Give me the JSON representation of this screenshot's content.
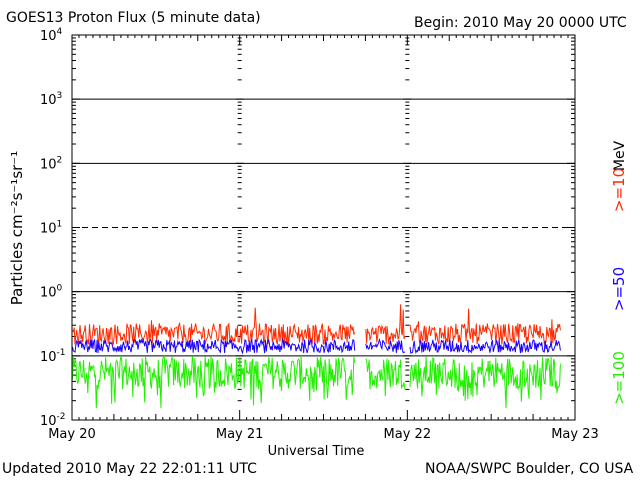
{
  "header": {
    "title": "GOES13 Proton Flux (5 minute data)",
    "begin": "Begin: 2010 May 20 0000 UTC"
  },
  "footer": {
    "updated": "Updated 2010 May 22 22:01:11 UTC",
    "credit": "NOAA/SWPC Boulder, CO USA"
  },
  "colors": {
    "ge10": "#ff2a00",
    "ge50": "#1a00ff",
    "ge100": "#22ee00",
    "axis": "#000000"
  },
  "chart_data": {
    "type": "line",
    "title": "GOES13 Proton Flux (5 minute data)",
    "xlabel": "Universal Time",
    "ylabel": "Particles cm⁻²s⁻¹sr⁻¹",
    "y_scale": "log",
    "ylim": [
      0.01,
      10000
    ],
    "xlim": [
      "2010-05-20 00:00",
      "2010-05-23 00:00"
    ],
    "x_ticks": [
      "May 20",
      "May 21",
      "May 22",
      "May 23"
    ],
    "y_ticks": [
      {
        "base": "10",
        "exp": "4"
      },
      {
        "base": "10",
        "exp": "3"
      },
      {
        "base": "10",
        "exp": "2"
      },
      {
        "base": "10",
        "exp": "1"
      },
      {
        "base": "10",
        "exp": "0"
      },
      {
        "base": "10",
        "exp": "-1"
      },
      {
        "base": "10",
        "exp": "-2"
      }
    ],
    "thresholds": [
      1000,
      100,
      10,
      1,
      0.1
    ],
    "legend_unit": "MeV",
    "series": [
      {
        "name": ">=10",
        "color": "#ff2a00",
        "typical_range": [
          0.15,
          0.32
        ]
      },
      {
        "name": ">=50",
        "color": "#1a00ff",
        "typical_range": [
          0.11,
          0.18
        ]
      },
      {
        "name": ">=100",
        "color": "#22ee00",
        "typical_range": [
          0.03,
          0.1
        ]
      }
    ],
    "data_gaps": [
      [
        "2010-05-21 16:30",
        "2010-05-21 18:00"
      ],
      [
        "2010-05-21 23:40",
        "2010-05-22 00:20"
      ]
    ],
    "data_end": "2010-05-22 22:00"
  }
}
